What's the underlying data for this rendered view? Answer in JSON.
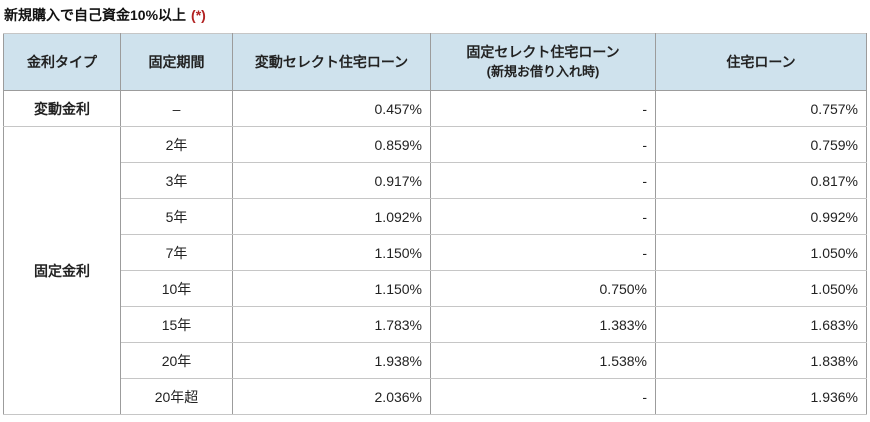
{
  "title": {
    "text": "新規購入で自己資金10%以上",
    "note": "(*)"
  },
  "colors": {
    "header_bg": "#cfe2ed",
    "note_red": "#b22222",
    "border_vertical": "#9c9c9c",
    "border_horizontal": "#c6c6c6",
    "text": "#222222"
  },
  "table": {
    "columns": [
      {
        "label": "金利タイプ"
      },
      {
        "label": "固定期間"
      },
      {
        "label": "変動セレクト住宅ローン"
      },
      {
        "label": "固定セレクト住宅ローン",
        "sublabel": "(新規お借り入れ時)"
      },
      {
        "label": "住宅ローン"
      }
    ],
    "groups": [
      {
        "type_label": "変動金利",
        "rows": [
          {
            "period": "–",
            "hendo_select": "0.457%",
            "kotei_select": "-",
            "jutaku": "0.757%"
          }
        ]
      },
      {
        "type_label": "固定金利",
        "rows": [
          {
            "period": "2年",
            "hendo_select": "0.859%",
            "kotei_select": "-",
            "jutaku": "0.759%"
          },
          {
            "period": "3年",
            "hendo_select": "0.917%",
            "kotei_select": "-",
            "jutaku": "0.817%"
          },
          {
            "period": "5年",
            "hendo_select": "1.092%",
            "kotei_select": "-",
            "jutaku": "0.992%"
          },
          {
            "period": "7年",
            "hendo_select": "1.150%",
            "kotei_select": "-",
            "jutaku": "1.050%"
          },
          {
            "period": "10年",
            "hendo_select": "1.150%",
            "kotei_select": "0.750%",
            "jutaku": "1.050%"
          },
          {
            "period": "15年",
            "hendo_select": "1.783%",
            "kotei_select": "1.383%",
            "jutaku": "1.683%"
          },
          {
            "period": "20年",
            "hendo_select": "1.938%",
            "kotei_select": "1.538%",
            "jutaku": "1.838%"
          },
          {
            "period": "20年超",
            "hendo_select": "2.036%",
            "kotei_select": "-",
            "jutaku": "1.936%"
          }
        ]
      }
    ]
  }
}
